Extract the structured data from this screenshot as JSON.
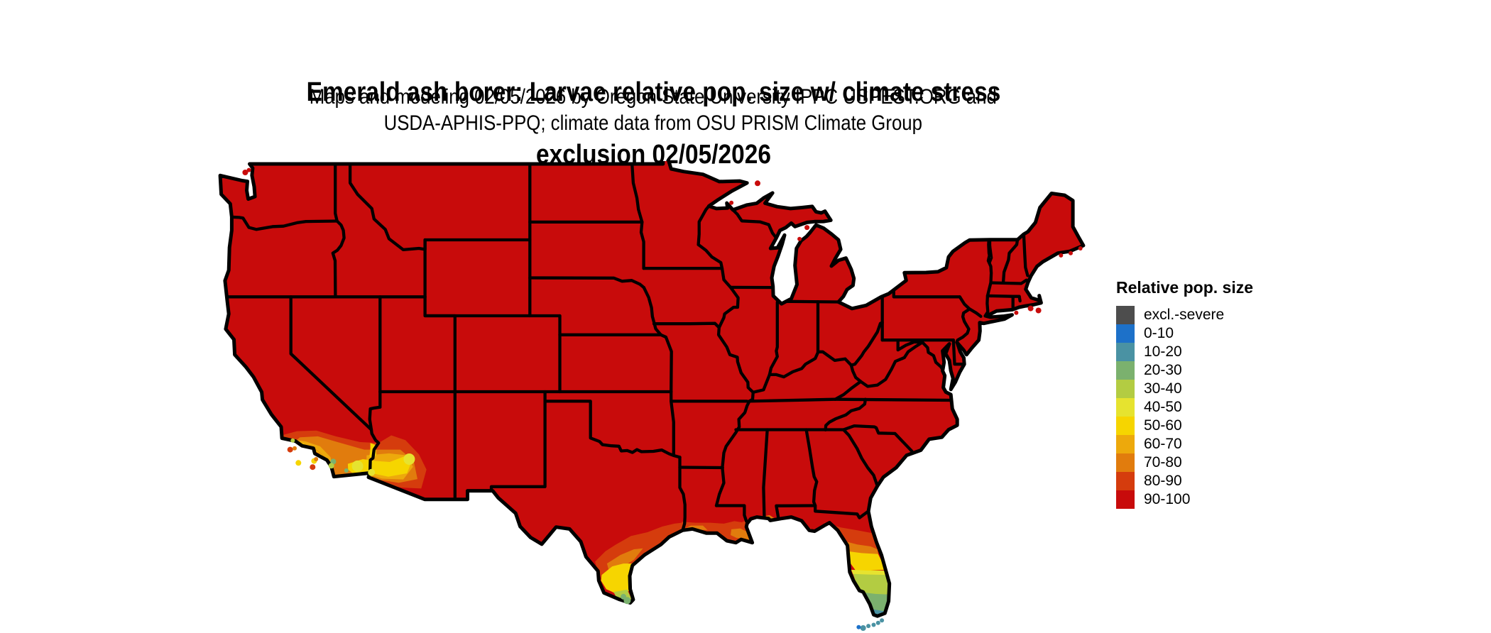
{
  "title": {
    "line1": "Emerald ash borer: Larvae relative pop. size w/ climate stress",
    "line2": "exclusion 02/05/2026"
  },
  "subtitle": {
    "line1": "Maps and modeling 02/05/2026 by Oregon State University IPPC USPEST.ORG and",
    "line2": "USDA-APHIS-PPQ; climate data from OSU PRISM Climate Group"
  },
  "legend": {
    "title": "Relative pop. size",
    "items": [
      {
        "label": "excl.-severe",
        "color": "#4d4d4d"
      },
      {
        "label": "0-10",
        "color": "#1d71c9"
      },
      {
        "label": "10-20",
        "color": "#4a92a3"
      },
      {
        "label": "20-30",
        "color": "#7bb16e"
      },
      {
        "label": "30-40",
        "color": "#b3cc42"
      },
      {
        "label": "40-50",
        "color": "#e6e32f"
      },
      {
        "label": "50-60",
        "color": "#f6d500"
      },
      {
        "label": "60-70",
        "color": "#eda90c"
      },
      {
        "label": "70-80",
        "color": "#e17c0d"
      },
      {
        "label": "80-90",
        "color": "#d53c0d"
      },
      {
        "label": "90-100",
        "color": "#c80b0b"
      }
    ]
  },
  "map": {
    "region_label": "Contiguous United States",
    "dominant_class": "90-100",
    "border_color": "#000000",
    "water_background": "#ffffff",
    "lower_value_areas": [
      "southern California coast and Channel Islands",
      "southwestern Arizona (Yuma/Phoenix deserts)",
      "southern Texas (Rio Grande Valley)",
      "Texas-Louisiana Gulf Coast",
      "Florida peninsula grading to Keys (teal/blue)"
    ]
  }
}
